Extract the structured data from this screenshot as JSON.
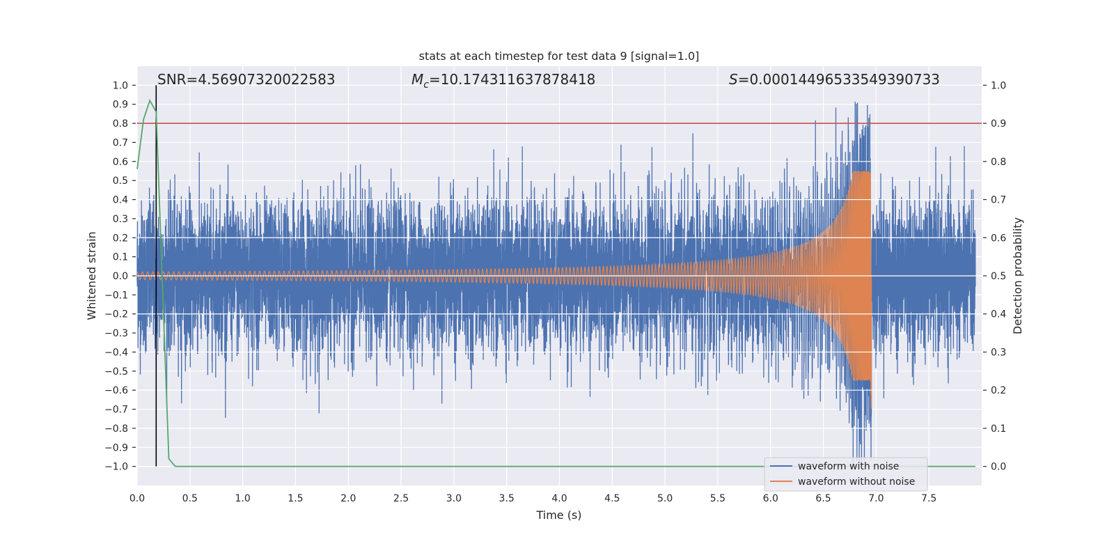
{
  "chart_data": {
    "type": "line",
    "title": "stats at each timestep for test data 9 [signal=1.0]",
    "xlabel": "Time (s)",
    "ylabel": "Whitened strain",
    "y2label": "Detection probability",
    "xlim": [
      0,
      8.0
    ],
    "ylim": [
      -1.1,
      1.1
    ],
    "y2lim": [
      -0.05,
      1.05
    ],
    "grid": true,
    "x_ticks": [
      "0.0",
      "0.5",
      "1.0",
      "1.5",
      "2.0",
      "2.5",
      "3.0",
      "3.5",
      "4.0",
      "4.5",
      "5.0",
      "5.5",
      "6.0",
      "6.5",
      "7.0",
      "7.5"
    ],
    "y_ticks": [
      "1.0",
      "0.9",
      "0.8",
      "0.7",
      "0.6",
      "0.5",
      "0.4",
      "0.3",
      "0.2",
      "0.1",
      "0.0",
      "−0.1",
      "−0.2",
      "−0.3",
      "−0.4",
      "−0.5",
      "−0.6",
      "−0.7",
      "−0.8",
      "−0.9",
      "−1.0"
    ],
    "y2_ticks": [
      "1.0",
      "0.9",
      "0.8",
      "0.7",
      "0.6",
      "0.5",
      "0.4",
      "0.3",
      "0.2",
      "0.1",
      "0.0"
    ],
    "annotations": {
      "snr": "SNR=4.56907320022583",
      "mc_symbol": "M",
      "mc_sub": "c",
      "mc_value": "=10.174311637878418",
      "s_symbol": "S",
      "s_value": "=0.00014496533549390733"
    },
    "legend": {
      "placement": "lower-right",
      "entries": [
        "waveform with noise",
        "waveform without noise"
      ]
    },
    "colors": {
      "noisy": "#4c72b0",
      "clean": "#dd8452",
      "probability": "#55a868",
      "threshold": "#c44e52",
      "marker": "#000000",
      "background": "#eaeaf2"
    },
    "threshold_probability": 0.9,
    "marker_time": 0.18,
    "waveform_without_noise": {
      "model": "chirp",
      "merger_time": 6.955,
      "start_frequency_hz": 20,
      "start_amplitude": 0.02,
      "peak_amplitude": 0.55,
      "min_amplitude_at_merger": -0.7
    },
    "waveform_with_noise": {
      "noise_std": 0.19,
      "typical_range": [
        -0.6,
        0.6
      ],
      "max": 1.0,
      "min": -1.0
    },
    "detection_probability": {
      "time": [
        0.0,
        0.06,
        0.12,
        0.18,
        0.24,
        0.3,
        0.36,
        7.94
      ],
      "values": [
        0.78,
        0.91,
        0.96,
        0.93,
        0.47,
        0.02,
        0.0,
        0.0
      ]
    }
  }
}
